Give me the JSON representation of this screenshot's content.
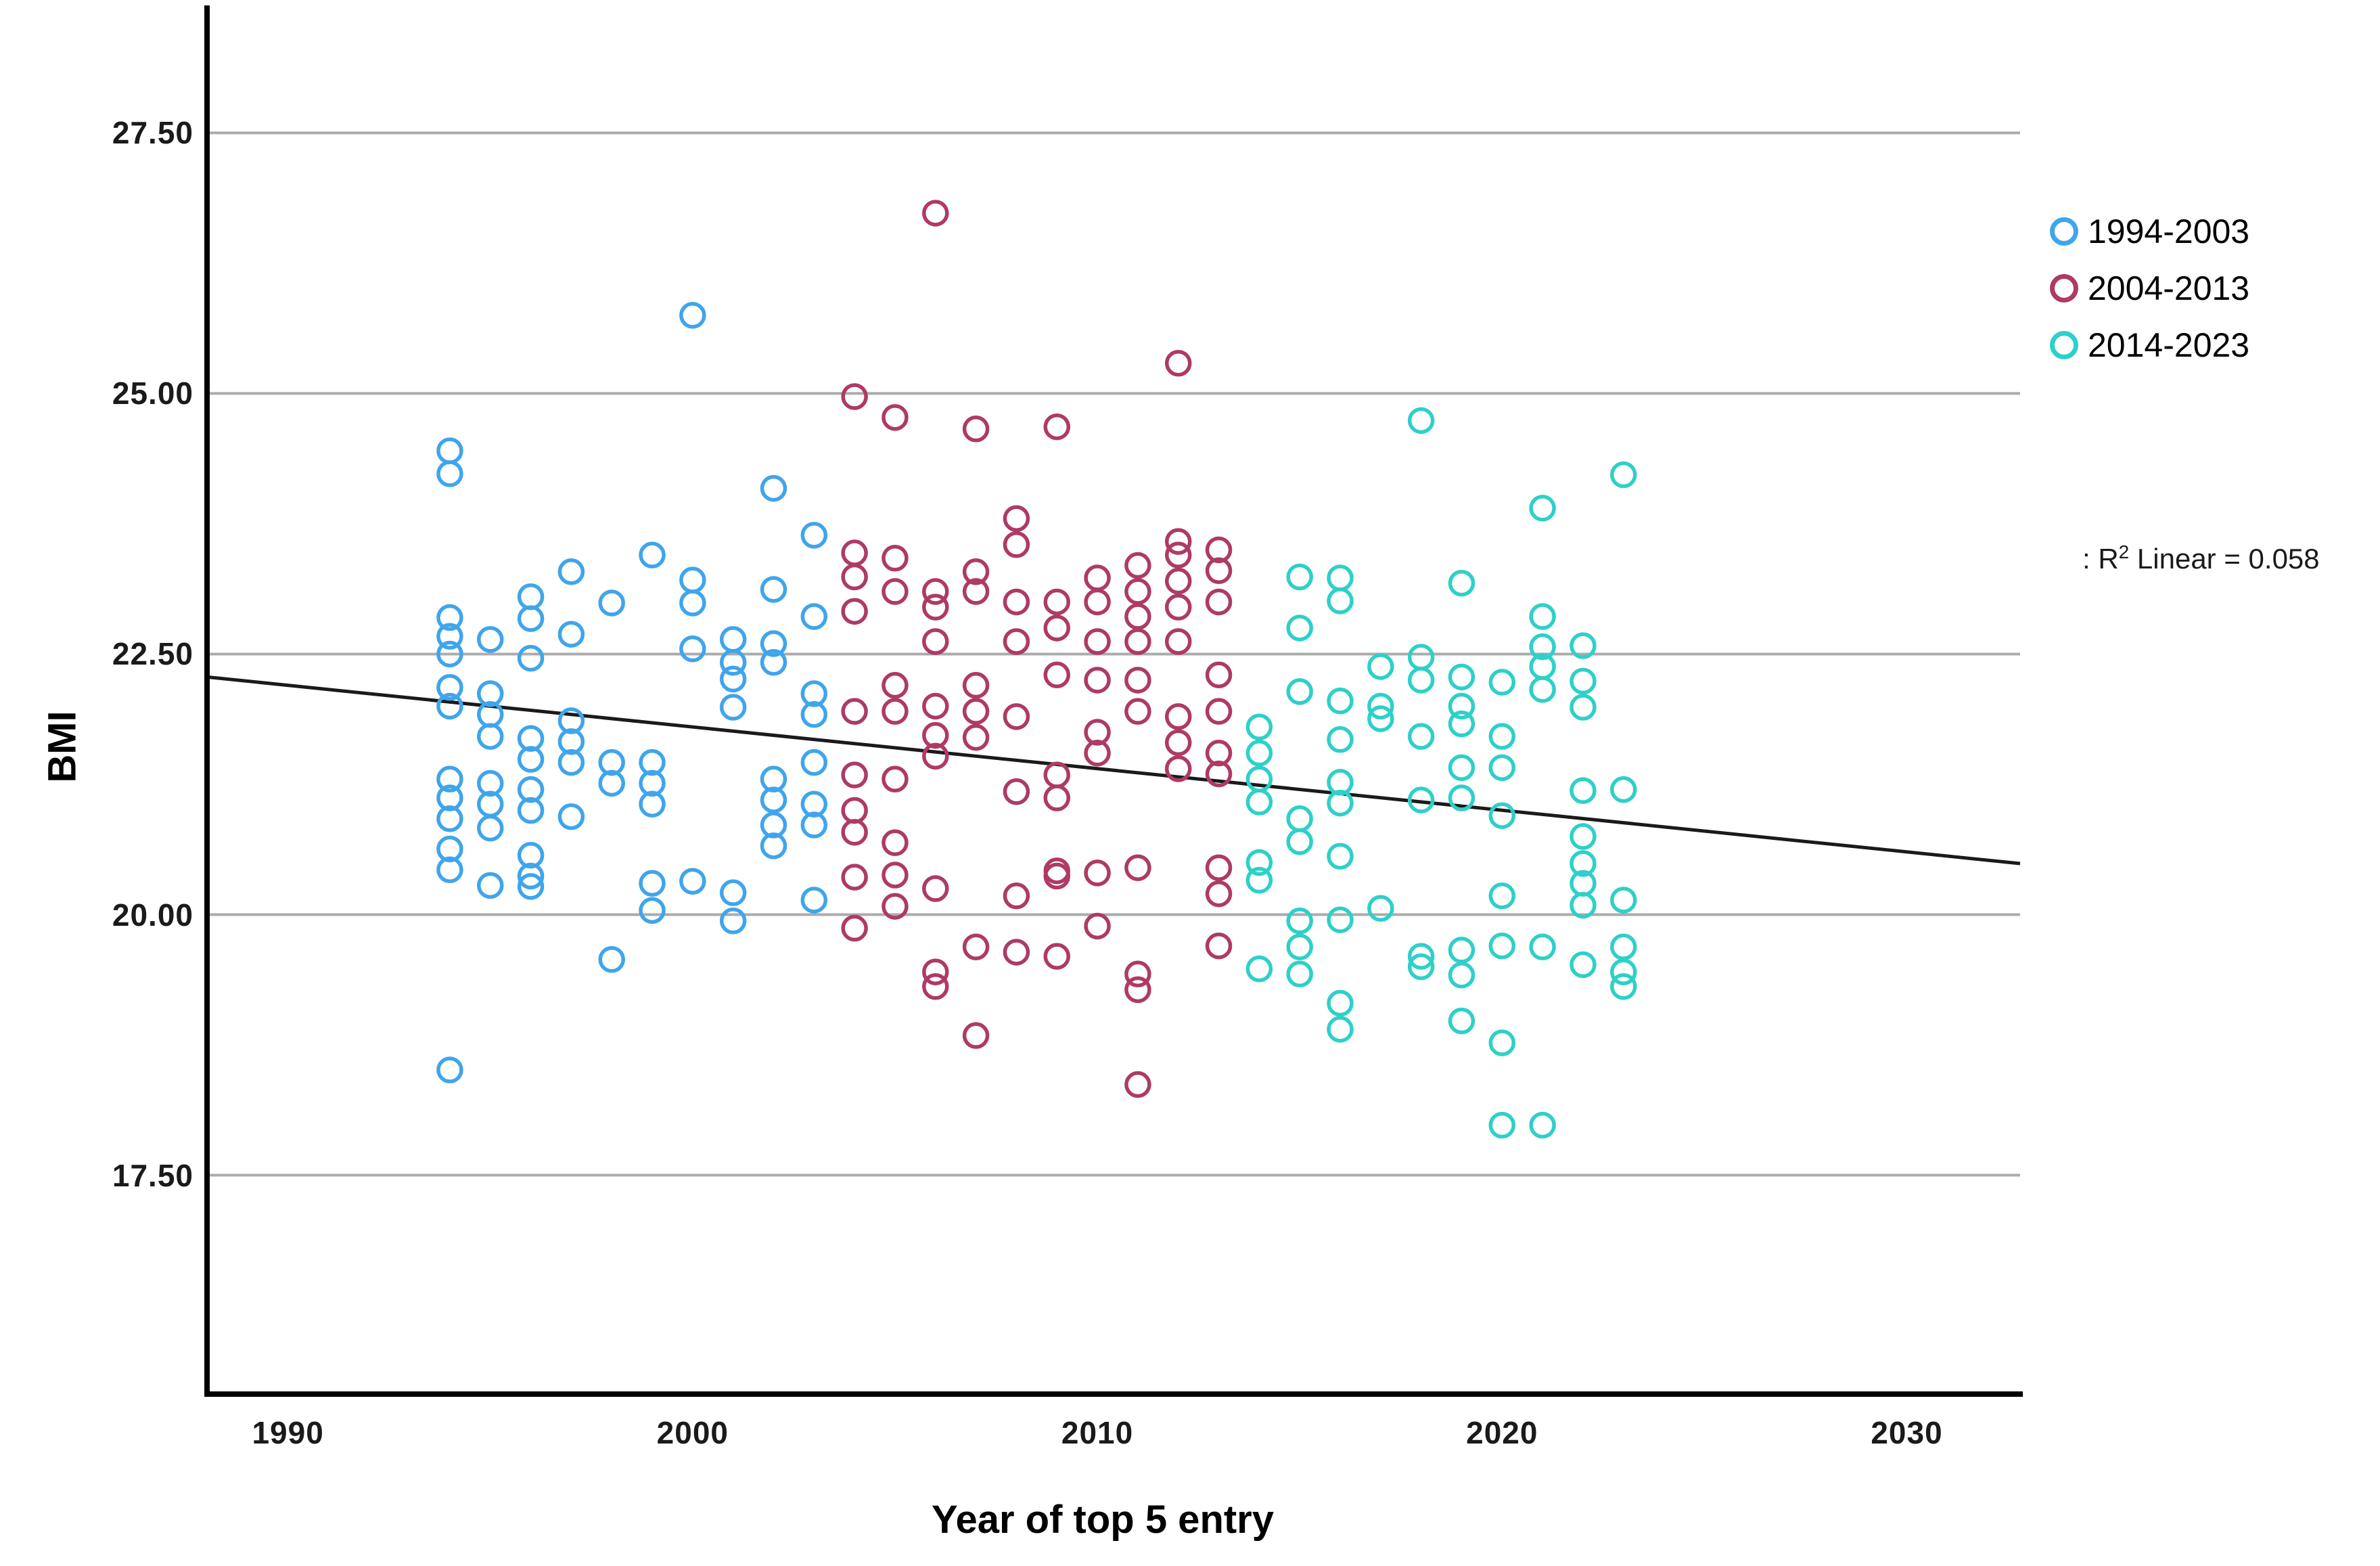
{
  "axes": {
    "y_title": "BMI",
    "x_title": "Year of top 5 entry"
  },
  "legend": {
    "items": [
      {
        "label": "1994-2003",
        "color": "#3FA5EC"
      },
      {
        "label": "2004-2013",
        "color": "#AE3A66"
      },
      {
        "label": "2014-2023",
        "color": "#2ED0C9"
      }
    ]
  },
  "annotation": {
    "prefix": ": R",
    "sup": "2",
    "suffix": " Linear = 0.058"
  },
  "chart_data": {
    "type": "scatter",
    "title": "",
    "xlabel": "Year of top 5 entry",
    "ylabel": "BMI",
    "grid": "horizontal",
    "legend_position": "right",
    "marker": "open-circle",
    "x_range": [
      1988.0,
      2032.8
    ],
    "y_range": [
      15.4,
      28.71
    ],
    "x_ticks": [
      1990,
      2000,
      2010,
      2020,
      2030
    ],
    "x_tick_labels": [
      "1990",
      "2000",
      "2010",
      "2020",
      "2030"
    ],
    "y_ticks": [
      27.5,
      25.0,
      22.5,
      20.0,
      17.5
    ],
    "y_tick_labels": [
      "27.50",
      "25.00",
      "22.50",
      "20.00",
      "17.50"
    ],
    "gridline_color": "#ABABAB",
    "spine_color": "#000000",
    "series": [
      {
        "name": "1994-2003",
        "color": "#3FA5EC",
        "points": [
          [
            1994,
            24.45
          ],
          [
            1994,
            24.23
          ],
          [
            1994,
            22.85
          ],
          [
            1994,
            22.67
          ],
          [
            1994,
            22.5
          ],
          [
            1994,
            22.18
          ],
          [
            1994,
            22.0
          ],
          [
            1994,
            21.3
          ],
          [
            1994,
            21.12
          ],
          [
            1994,
            20.92
          ],
          [
            1994,
            20.63
          ],
          [
            1994,
            20.43
          ],
          [
            1994,
            18.51
          ],
          [
            1995,
            22.64
          ],
          [
            1995,
            22.12
          ],
          [
            1995,
            21.92
          ],
          [
            1995,
            21.71
          ],
          [
            1995,
            21.26
          ],
          [
            1995,
            21.06
          ],
          [
            1995,
            20.83
          ],
          [
            1995,
            20.28
          ],
          [
            1996,
            23.05
          ],
          [
            1996,
            22.84
          ],
          [
            1996,
            22.46
          ],
          [
            1996,
            21.69
          ],
          [
            1996,
            21.49
          ],
          [
            1996,
            21.2
          ],
          [
            1996,
            21.0
          ],
          [
            1996,
            20.57
          ],
          [
            1996,
            20.37
          ],
          [
            1996,
            20.27
          ],
          [
            1997,
            23.29
          ],
          [
            1997,
            22.69
          ],
          [
            1997,
            21.86
          ],
          [
            1997,
            21.66
          ],
          [
            1997,
            21.46
          ],
          [
            1997,
            20.94
          ],
          [
            1998,
            22.99
          ],
          [
            1998,
            21.46
          ],
          [
            1998,
            21.26
          ],
          [
            1998,
            19.57
          ],
          [
            1999,
            23.45
          ],
          [
            1999,
            21.46
          ],
          [
            1999,
            21.26
          ],
          [
            1999,
            21.06
          ],
          [
            1999,
            20.3
          ],
          [
            1999,
            20.04
          ],
          [
            2000,
            25.75
          ],
          [
            2000,
            23.21
          ],
          [
            2000,
            22.99
          ],
          [
            2000,
            22.55
          ],
          [
            2000,
            20.32
          ],
          [
            2001,
            22.64
          ],
          [
            2001,
            22.42
          ],
          [
            2001,
            22.26
          ],
          [
            2001,
            21.99
          ],
          [
            2001,
            20.21
          ],
          [
            2001,
            19.94
          ],
          [
            2002,
            24.09
          ],
          [
            2002,
            23.12
          ],
          [
            2002,
            22.6
          ],
          [
            2002,
            22.42
          ],
          [
            2002,
            21.3
          ],
          [
            2002,
            21.1
          ],
          [
            2002,
            20.86
          ],
          [
            2002,
            20.66
          ],
          [
            2003,
            23.64
          ],
          [
            2003,
            22.86
          ],
          [
            2003,
            22.12
          ],
          [
            2003,
            21.92
          ],
          [
            2003,
            21.46
          ],
          [
            2003,
            21.06
          ],
          [
            2003,
            20.86
          ],
          [
            2003,
            20.14
          ]
        ]
      },
      {
        "name": "2004-2013",
        "color": "#AE3A66",
        "points": [
          [
            2004,
            24.97
          ],
          [
            2004,
            23.47
          ],
          [
            2004,
            23.24
          ],
          [
            2004,
            22.91
          ],
          [
            2004,
            21.95
          ],
          [
            2004,
            21.34
          ],
          [
            2004,
            21.0
          ],
          [
            2004,
            20.79
          ],
          [
            2004,
            20.36
          ],
          [
            2004,
            19.87
          ],
          [
            2005,
            24.77
          ],
          [
            2005,
            23.42
          ],
          [
            2005,
            23.1
          ],
          [
            2005,
            22.2
          ],
          [
            2005,
            21.95
          ],
          [
            2005,
            21.3
          ],
          [
            2005,
            20.69
          ],
          [
            2005,
            20.38
          ],
          [
            2005,
            20.08
          ],
          [
            2006,
            26.73
          ],
          [
            2006,
            23.1
          ],
          [
            2006,
            22.95
          ],
          [
            2006,
            22.62
          ],
          [
            2006,
            22.0
          ],
          [
            2006,
            21.72
          ],
          [
            2006,
            21.52
          ],
          [
            2006,
            20.25
          ],
          [
            2006,
            19.45
          ],
          [
            2006,
            19.31
          ],
          [
            2007,
            24.66
          ],
          [
            2007,
            23.29
          ],
          [
            2007,
            23.1
          ],
          [
            2007,
            22.2
          ],
          [
            2007,
            21.95
          ],
          [
            2007,
            21.7
          ],
          [
            2007,
            19.69
          ],
          [
            2007,
            18.84
          ],
          [
            2008,
            23.8
          ],
          [
            2008,
            23.55
          ],
          [
            2008,
            23.0
          ],
          [
            2008,
            22.62
          ],
          [
            2008,
            21.9
          ],
          [
            2008,
            21.18
          ],
          [
            2008,
            20.18
          ],
          [
            2008,
            19.64
          ],
          [
            2009,
            24.68
          ],
          [
            2009,
            23.0
          ],
          [
            2009,
            22.75
          ],
          [
            2009,
            22.3
          ],
          [
            2009,
            21.34
          ],
          [
            2009,
            21.12
          ],
          [
            2009,
            20.42
          ],
          [
            2009,
            20.37
          ],
          [
            2009,
            19.6
          ],
          [
            2010,
            23.23
          ],
          [
            2010,
            23.0
          ],
          [
            2010,
            22.62
          ],
          [
            2010,
            22.25
          ],
          [
            2010,
            21.75
          ],
          [
            2010,
            21.55
          ],
          [
            2010,
            20.4
          ],
          [
            2010,
            19.89
          ],
          [
            2011,
            23.35
          ],
          [
            2011,
            23.1
          ],
          [
            2011,
            22.86
          ],
          [
            2011,
            22.62
          ],
          [
            2011,
            22.25
          ],
          [
            2011,
            21.95
          ],
          [
            2011,
            20.45
          ],
          [
            2011,
            19.43
          ],
          [
            2011,
            19.28
          ],
          [
            2011,
            18.37
          ],
          [
            2012,
            25.29
          ],
          [
            2012,
            23.58
          ],
          [
            2012,
            23.45
          ],
          [
            2012,
            23.2
          ],
          [
            2012,
            22.95
          ],
          [
            2012,
            22.62
          ],
          [
            2012,
            21.9
          ],
          [
            2012,
            21.65
          ],
          [
            2012,
            21.4
          ],
          [
            2013,
            23.5
          ],
          [
            2013,
            23.3
          ],
          [
            2013,
            23.0
          ],
          [
            2013,
            22.3
          ],
          [
            2013,
            21.95
          ],
          [
            2013,
            21.55
          ],
          [
            2013,
            21.35
          ],
          [
            2013,
            20.45
          ],
          [
            2013,
            20.2
          ],
          [
            2013,
            19.7
          ]
        ]
      },
      {
        "name": "2014-2023",
        "color": "#2ED0C9",
        "points": [
          [
            2014,
            21.8
          ],
          [
            2014,
            21.55
          ],
          [
            2014,
            21.3
          ],
          [
            2014,
            21.08
          ],
          [
            2014,
            20.5
          ],
          [
            2014,
            20.33
          ],
          [
            2014,
            19.48
          ],
          [
            2015,
            23.24
          ],
          [
            2015,
            22.75
          ],
          [
            2015,
            22.14
          ],
          [
            2015,
            20.92
          ],
          [
            2015,
            20.7
          ],
          [
            2015,
            19.94
          ],
          [
            2015,
            19.69
          ],
          [
            2015,
            19.43
          ],
          [
            2016,
            23.23
          ],
          [
            2016,
            23.01
          ],
          [
            2016,
            22.05
          ],
          [
            2016,
            21.68
          ],
          [
            2016,
            21.27
          ],
          [
            2016,
            21.07
          ],
          [
            2016,
            20.56
          ],
          [
            2016,
            19.95
          ],
          [
            2016,
            19.15
          ],
          [
            2016,
            18.9
          ],
          [
            2017,
            22.38
          ],
          [
            2017,
            22.0
          ],
          [
            2017,
            21.88
          ],
          [
            2017,
            20.06
          ],
          [
            2018,
            24.74
          ],
          [
            2018,
            22.47
          ],
          [
            2018,
            22.25
          ],
          [
            2018,
            21.71
          ],
          [
            2018,
            21.1
          ],
          [
            2018,
            19.6
          ],
          [
            2018,
            19.5
          ],
          [
            2019,
            23.18
          ],
          [
            2019,
            22.28
          ],
          [
            2019,
            22.0
          ],
          [
            2019,
            21.83
          ],
          [
            2019,
            21.41
          ],
          [
            2019,
            21.12
          ],
          [
            2019,
            19.66
          ],
          [
            2019,
            19.42
          ],
          [
            2019,
            18.98
          ],
          [
            2020,
            22.23
          ],
          [
            2020,
            21.71
          ],
          [
            2020,
            21.41
          ],
          [
            2020,
            20.95
          ],
          [
            2020,
            20.18
          ],
          [
            2020,
            19.7
          ],
          [
            2020,
            18.77
          ],
          [
            2020,
            17.98
          ],
          [
            2021,
            23.9
          ],
          [
            2021,
            22.86
          ],
          [
            2021,
            22.57
          ],
          [
            2021,
            22.38
          ],
          [
            2021,
            22.16
          ],
          [
            2021,
            19.69
          ],
          [
            2021,
            17.98
          ],
          [
            2022,
            22.58
          ],
          [
            2022,
            22.24
          ],
          [
            2022,
            21.99
          ],
          [
            2022,
            21.19
          ],
          [
            2022,
            20.75
          ],
          [
            2022,
            20.49
          ],
          [
            2022,
            20.3
          ],
          [
            2022,
            20.09
          ],
          [
            2022,
            19.52
          ],
          [
            2023,
            24.22
          ],
          [
            2023,
            21.2
          ],
          [
            2023,
            20.14
          ],
          [
            2023,
            19.69
          ],
          [
            2023,
            19.45
          ],
          [
            2023,
            19.31
          ]
        ]
      }
    ],
    "trendline": {
      "x1": 1988.0,
      "y1": 22.28,
      "x2": 2032.8,
      "y2": 20.49,
      "color": "#1a1a1a",
      "r2": "0.058"
    }
  }
}
